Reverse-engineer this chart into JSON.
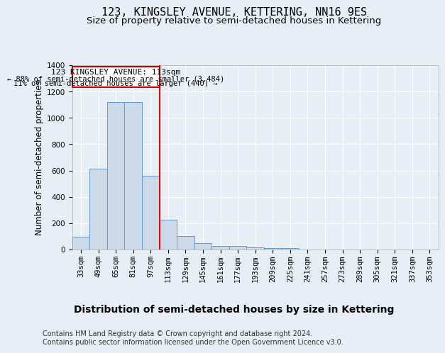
{
  "title": "123, KINGSLEY AVENUE, KETTERING, NN16 9ES",
  "subtitle": "Size of property relative to semi-detached houses in Kettering",
  "xlabel": "Distribution of semi-detached houses by size in Kettering",
  "ylabel": "Number of semi-detached properties",
  "footnote1": "Contains HM Land Registry data © Crown copyright and database right 2024.",
  "footnote2": "Contains public sector information licensed under the Open Government Licence v3.0.",
  "annotation_title": "123 KINGSLEY AVENUE: 113sqm",
  "annotation_line1": "← 88% of semi-detached houses are smaller (3,484)",
  "annotation_line2": "11% of semi-detached houses are larger (440) →",
  "bar_categories": [
    "33sqm",
    "49sqm",
    "65sqm",
    "81sqm",
    "97sqm",
    "113sqm",
    "129sqm",
    "145sqm",
    "161sqm",
    "177sqm",
    "193sqm",
    "209sqm",
    "225sqm",
    "241sqm",
    "257sqm",
    "273sqm",
    "289sqm",
    "305sqm",
    "321sqm",
    "337sqm",
    "353sqm"
  ],
  "bar_values": [
    95,
    615,
    1120,
    1120,
    560,
    225,
    100,
    50,
    28,
    28,
    18,
    10,
    10,
    0,
    0,
    0,
    0,
    0,
    0,
    0,
    0
  ],
  "bar_color": "#ccd9e8",
  "bar_edge_color": "#6699cc",
  "red_line_index": 5,
  "ylim": [
    0,
    1400
  ],
  "yticks": [
    0,
    200,
    400,
    600,
    800,
    1000,
    1200,
    1400
  ],
  "background_color": "#e8eef5",
  "plot_bg_color": "#e8eef5",
  "grid_color": "#ffffff",
  "annotation_box_color": "#cc0000",
  "title_fontsize": 11,
  "subtitle_fontsize": 9.5,
  "xlabel_fontsize": 10,
  "ylabel_fontsize": 8.5,
  "tick_fontsize": 7.5,
  "annotation_fontsize": 8,
  "footnote_fontsize": 7
}
